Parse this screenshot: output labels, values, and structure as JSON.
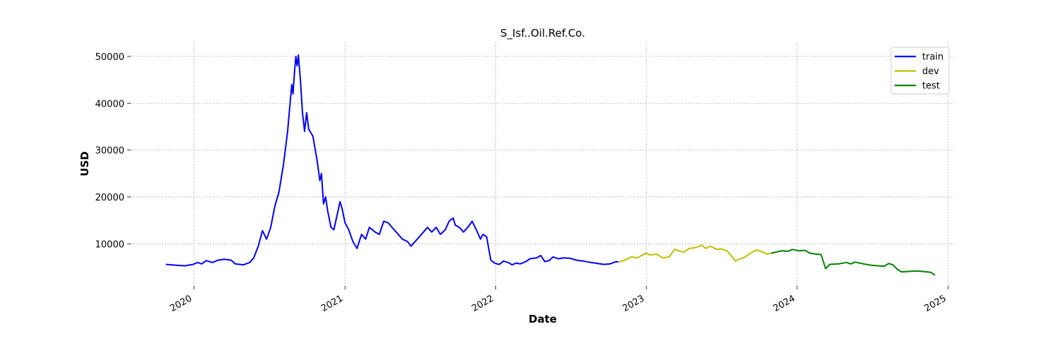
{
  "chart_data": {
    "type": "line",
    "title": "S_Isf..Oil.Ref.Co.",
    "xlabel": "Date",
    "ylabel": "USD",
    "x_type": "date",
    "xlim": [
      "2019-08-01",
      "2025-01-15"
    ],
    "ylim": [
      1000,
      53000
    ],
    "x_ticks": [
      "2020-01-01",
      "2021-01-01",
      "2022-01-01",
      "2023-01-01",
      "2024-01-01",
      "2025-01-01"
    ],
    "x_tick_labels": [
      "2020",
      "2021",
      "2022",
      "2023",
      "2024",
      "2025"
    ],
    "y_ticks": [
      10000,
      20000,
      30000,
      40000,
      50000
    ],
    "y_tick_labels": [
      "10000",
      "20000",
      "30000",
      "40000",
      "50000"
    ],
    "grid": true,
    "legend_position": "top-right",
    "series": [
      {
        "name": "train",
        "color": "#0000ff",
        "points": [
          [
            "2019-10-25",
            5600
          ],
          [
            "2019-11-20",
            5400
          ],
          [
            "2019-12-10",
            5300
          ],
          [
            "2019-12-30",
            5600
          ],
          [
            "2020-01-10",
            6000
          ],
          [
            "2020-01-20",
            5700
          ],
          [
            "2020-01-31",
            6400
          ],
          [
            "2020-02-15",
            6000
          ],
          [
            "2020-02-28",
            6500
          ],
          [
            "2020-03-15",
            6700
          ],
          [
            "2020-03-31",
            6500
          ],
          [
            "2020-04-10",
            5700
          ],
          [
            "2020-04-30",
            5500
          ],
          [
            "2020-05-15",
            6000
          ],
          [
            "2020-05-25",
            7000
          ],
          [
            "2020-06-05",
            9500
          ],
          [
            "2020-06-15",
            12800
          ],
          [
            "2020-06-25",
            11000
          ],
          [
            "2020-07-05",
            13500
          ],
          [
            "2020-07-15",
            18000
          ],
          [
            "2020-07-25",
            21000
          ],
          [
            "2020-08-05",
            27000
          ],
          [
            "2020-08-15",
            34000
          ],
          [
            "2020-08-20",
            39000
          ],
          [
            "2020-08-25",
            44000
          ],
          [
            "2020-08-28",
            42000
          ],
          [
            "2020-09-01",
            47000
          ],
          [
            "2020-09-04",
            50000
          ],
          [
            "2020-09-07",
            48000
          ],
          [
            "2020-09-10",
            50300
          ],
          [
            "2020-09-15",
            45000
          ],
          [
            "2020-09-20",
            38000
          ],
          [
            "2020-09-25",
            34000
          ],
          [
            "2020-09-30",
            38000
          ],
          [
            "2020-10-05",
            34500
          ],
          [
            "2020-10-15",
            33000
          ],
          [
            "2020-10-25",
            28000
          ],
          [
            "2020-11-01",
            23500
          ],
          [
            "2020-11-05",
            25000
          ],
          [
            "2020-11-10",
            18500
          ],
          [
            "2020-11-15",
            20000
          ],
          [
            "2020-11-20",
            17000
          ],
          [
            "2020-11-28",
            13500
          ],
          [
            "2020-12-05",
            13000
          ],
          [
            "2020-12-15",
            17000
          ],
          [
            "2020-12-20",
            19000
          ],
          [
            "2020-12-25",
            17500
          ],
          [
            "2021-01-01",
            14500
          ],
          [
            "2021-01-10",
            13000
          ],
          [
            "2021-01-20",
            10500
          ],
          [
            "2021-01-30",
            9000
          ],
          [
            "2021-02-10",
            12000
          ],
          [
            "2021-02-20",
            11000
          ],
          [
            "2021-03-01",
            13500
          ],
          [
            "2021-03-15",
            12500
          ],
          [
            "2021-03-25",
            12000
          ],
          [
            "2021-04-05",
            14800
          ],
          [
            "2021-04-15",
            14500
          ],
          [
            "2021-04-25",
            13500
          ],
          [
            "2021-05-05",
            12500
          ],
          [
            "2021-05-20",
            11000
          ],
          [
            "2021-06-01",
            10500
          ],
          [
            "2021-06-10",
            9500
          ],
          [
            "2021-06-25",
            11000
          ],
          [
            "2021-07-10",
            12500
          ],
          [
            "2021-07-20",
            13500
          ],
          [
            "2021-07-30",
            12500
          ],
          [
            "2021-08-10",
            13500
          ],
          [
            "2021-08-20",
            12000
          ],
          [
            "2021-09-01",
            13000
          ],
          [
            "2021-09-10",
            14800
          ],
          [
            "2021-09-20",
            15500
          ],
          [
            "2021-09-25",
            14000
          ],
          [
            "2021-10-05",
            13500
          ],
          [
            "2021-10-15",
            12500
          ],
          [
            "2021-10-25",
            13500
          ],
          [
            "2021-11-05",
            14800
          ],
          [
            "2021-11-15",
            13000
          ],
          [
            "2021-11-25",
            11000
          ],
          [
            "2021-12-01",
            12000
          ],
          [
            "2021-12-10",
            11500
          ],
          [
            "2021-12-20",
            6500
          ],
          [
            "2021-12-31",
            5800
          ],
          [
            "2022-01-10",
            5600
          ],
          [
            "2022-01-20",
            6300
          ],
          [
            "2022-01-31",
            6000
          ],
          [
            "2022-02-10",
            5500
          ],
          [
            "2022-02-20",
            5900
          ],
          [
            "2022-03-01",
            5700
          ],
          [
            "2022-03-15",
            6200
          ],
          [
            "2022-03-25",
            6800
          ],
          [
            "2022-04-10",
            7000
          ],
          [
            "2022-04-20",
            7500
          ],
          [
            "2022-04-30",
            6200
          ],
          [
            "2022-05-10",
            6400
          ],
          [
            "2022-05-20",
            7200
          ],
          [
            "2022-06-01",
            6800
          ],
          [
            "2022-06-15",
            7000
          ],
          [
            "2022-07-01",
            6900
          ],
          [
            "2022-07-15",
            6500
          ],
          [
            "2022-08-01",
            6300
          ],
          [
            "2022-08-20",
            6000
          ],
          [
            "2022-09-05",
            5800
          ],
          [
            "2022-09-20",
            5600
          ],
          [
            "2022-10-05",
            5700
          ],
          [
            "2022-10-20",
            6200
          ],
          [
            "2022-10-25",
            6100
          ]
        ]
      },
      {
        "name": "dev",
        "color": "#bfbf00",
        "points": [
          [
            "2022-10-25",
            6100
          ],
          [
            "2022-11-10",
            6500
          ],
          [
            "2022-11-25",
            7200
          ],
          [
            "2022-12-10",
            7000
          ],
          [
            "2022-12-20",
            7500
          ],
          [
            "2022-12-31",
            8000
          ],
          [
            "2023-01-10",
            7600
          ],
          [
            "2023-01-25",
            7800
          ],
          [
            "2023-02-10",
            7000
          ],
          [
            "2023-02-25",
            7200
          ],
          [
            "2023-03-10",
            8800
          ],
          [
            "2023-03-20",
            8500
          ],
          [
            "2023-04-01",
            8200
          ],
          [
            "2023-04-15",
            9000
          ],
          [
            "2023-05-01",
            9200
          ],
          [
            "2023-05-15",
            9700
          ],
          [
            "2023-05-25",
            9000
          ],
          [
            "2023-06-05",
            9500
          ],
          [
            "2023-06-20",
            8800
          ],
          [
            "2023-07-01",
            8900
          ],
          [
            "2023-07-15",
            8500
          ],
          [
            "2023-07-25",
            7500
          ],
          [
            "2023-08-05",
            6300
          ],
          [
            "2023-08-15",
            6800
          ],
          [
            "2023-08-25",
            7000
          ],
          [
            "2023-09-10",
            8000
          ],
          [
            "2023-09-25",
            8700
          ],
          [
            "2023-10-10",
            8200
          ],
          [
            "2023-10-20",
            7800
          ],
          [
            "2023-10-30",
            8000
          ]
        ]
      },
      {
        "name": "test",
        "color": "#008000",
        "points": [
          [
            "2023-10-30",
            8000
          ],
          [
            "2023-11-10",
            8200
          ],
          [
            "2023-11-25",
            8500
          ],
          [
            "2023-12-10",
            8400
          ],
          [
            "2023-12-20",
            8800
          ],
          [
            "2024-01-05",
            8500
          ],
          [
            "2024-01-20",
            8600
          ],
          [
            "2024-02-01",
            8000
          ],
          [
            "2024-02-15",
            7800
          ],
          [
            "2024-02-28",
            7700
          ],
          [
            "2024-03-10",
            4700
          ],
          [
            "2024-03-20",
            5600
          ],
          [
            "2024-04-10",
            5700
          ],
          [
            "2024-04-30",
            6000
          ],
          [
            "2024-05-10",
            5700
          ],
          [
            "2024-05-20",
            6100
          ],
          [
            "2024-06-10",
            5700
          ],
          [
            "2024-06-30",
            5400
          ],
          [
            "2024-07-15",
            5300
          ],
          [
            "2024-07-30",
            5200
          ],
          [
            "2024-08-10",
            5800
          ],
          [
            "2024-08-20",
            5500
          ],
          [
            "2024-08-30",
            4600
          ],
          [
            "2024-09-10",
            4000
          ],
          [
            "2024-09-30",
            4100
          ],
          [
            "2024-10-20",
            4200
          ],
          [
            "2024-11-10",
            4000
          ],
          [
            "2024-11-20",
            3900
          ],
          [
            "2024-11-30",
            3300
          ]
        ]
      }
    ]
  }
}
